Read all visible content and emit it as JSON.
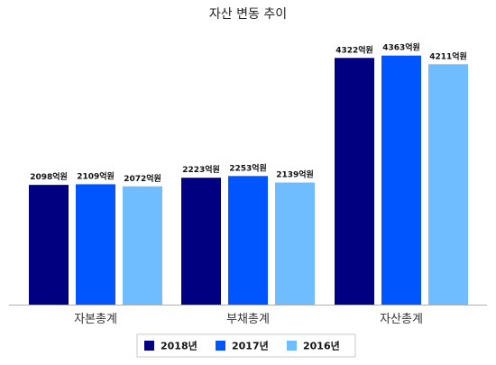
{
  "chart_data": {
    "type": "bar",
    "title": "자산 변동 추이",
    "categories": [
      "자본총계",
      "부채총계",
      "자산총계"
    ],
    "series": [
      {
        "name": "2018년",
        "color": "#000080",
        "values": [
          2098,
          2223,
          4322
        ]
      },
      {
        "name": "2017년",
        "color": "#0055ff",
        "values": [
          2109,
          2253,
          4363
        ]
      },
      {
        "name": "2016년",
        "color": "#6fbcff",
        "values": [
          2072,
          2139,
          4211
        ]
      }
    ],
    "value_suffix": "억원",
    "ylim": [
      0,
      4800
    ],
    "grid": false,
    "legend": "bottom"
  }
}
